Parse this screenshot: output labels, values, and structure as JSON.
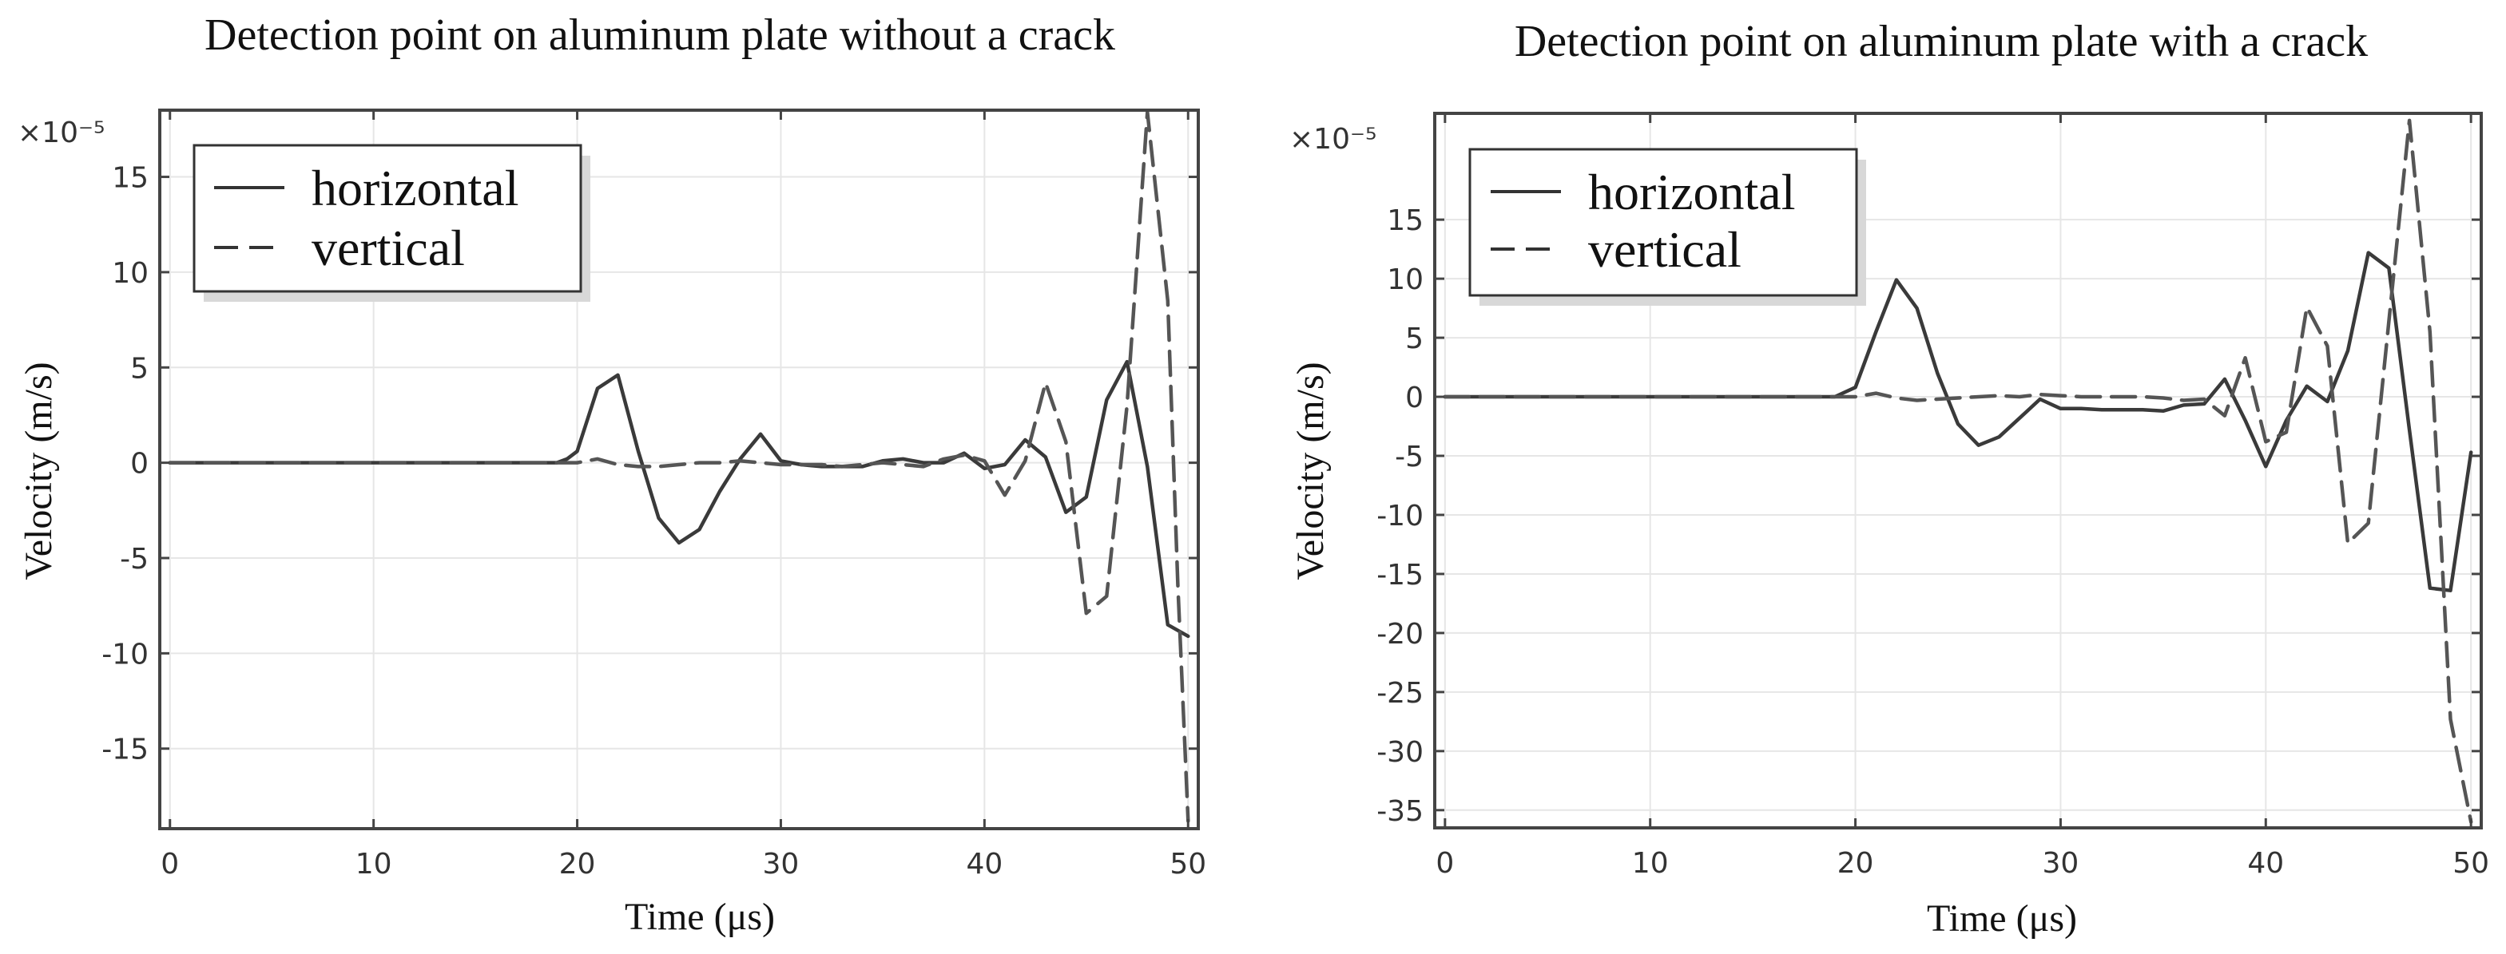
{
  "chart_data": [
    {
      "type": "line",
      "title": "Detection point on aluminum plate without a crack",
      "xlabel": "Time (μs)",
      "ylabel": "Velocity (m/s)",
      "y_scale_label": "×10⁻⁵",
      "xlim": [
        -0.5,
        50.5
      ],
      "ylim": [
        -19.2,
        18.5
      ],
      "xticks": [
        0,
        10,
        20,
        30,
        40,
        50
      ],
      "yticks": [
        -15,
        -10,
        -5,
        0,
        5,
        10,
        15
      ],
      "xtick_labels": [
        "0",
        "10",
        "20",
        "30",
        "40",
        "50"
      ],
      "ytick_labels": [
        "-15",
        "-10",
        "-5",
        "0",
        "5",
        "10",
        "15"
      ],
      "grid": true,
      "legend_position": "top-left",
      "series": [
        {
          "name": "horizontal",
          "style": "solid",
          "color": "#3a3a3a",
          "x": [
            0,
            19,
            19.5,
            20,
            21,
            22,
            23,
            24,
            25,
            26,
            27,
            28,
            29,
            30,
            31,
            32,
            33,
            34,
            35,
            36,
            37,
            38,
            39,
            40,
            41,
            42,
            43,
            44,
            45,
            46,
            47,
            48,
            49,
            50
          ],
          "y": [
            0,
            0,
            0.2,
            0.6,
            3.9,
            4.6,
            0.6,
            -2.9,
            -4.2,
            -3.5,
            -1.5,
            0.2,
            1.5,
            0.1,
            -0.1,
            -0.2,
            -0.2,
            -0.2,
            0.1,
            0.2,
            0,
            0,
            0.5,
            -0.3,
            -0.1,
            1.2,
            0.3,
            -2.6,
            -1.8,
            3.3,
            5.3,
            -0.2,
            -8.5,
            -9.1
          ]
        },
        {
          "name": "vertical",
          "style": "dashed",
          "color": "#555555",
          "x": [
            0,
            19,
            20,
            21,
            22,
            23,
            24,
            25,
            26,
            27,
            28,
            29,
            30,
            31,
            32,
            33,
            34,
            35,
            36,
            37,
            38,
            39,
            40,
            41,
            42,
            43,
            44,
            45,
            46,
            47,
            48,
            49,
            49.5,
            50
          ],
          "y": [
            0,
            0,
            0,
            0.2,
            -0.1,
            -0.2,
            -0.2,
            -0.1,
            0,
            0,
            0.1,
            0,
            -0.1,
            -0.1,
            -0.1,
            -0.2,
            -0.1,
            0,
            -0.1,
            -0.2,
            0.2,
            0.4,
            0.1,
            -1.7,
            0.1,
            4.2,
            1.1,
            -7.9,
            -7.0,
            3.0,
            18.4,
            8.5,
            -6.5,
            -18.8
          ]
        }
      ]
    },
    {
      "type": "line",
      "title": "Detection point on aluminum plate with a crack",
      "xlabel": "Time (μs)",
      "ylabel": "Velocity (m/s)",
      "y_scale_label": "×10⁻⁵",
      "xlim": [
        -0.5,
        50.5
      ],
      "ylim": [
        -36.5,
        24
      ],
      "xticks": [
        0,
        10,
        20,
        30,
        40,
        50
      ],
      "yticks": [
        -35,
        -30,
        -25,
        -20,
        -15,
        -10,
        -5,
        0,
        5,
        10,
        15
      ],
      "xtick_labels": [
        "0",
        "10",
        "20",
        "30",
        "40",
        "50"
      ],
      "ytick_labels": [
        "-35",
        "-30",
        "-25",
        "-20",
        "-15",
        "-10",
        "-5",
        "0",
        "5",
        "10",
        "15"
      ],
      "grid": true,
      "legend_position": "top-left",
      "series": [
        {
          "name": "horizontal",
          "style": "solid",
          "color": "#3a3a3a",
          "x": [
            0,
            19,
            20,
            21,
            22,
            23,
            24,
            25,
            26,
            27,
            28,
            29,
            30,
            31,
            32,
            33,
            34,
            35,
            36,
            37,
            38,
            39,
            40,
            41,
            42,
            43,
            44,
            45,
            46,
            47,
            48,
            49,
            50
          ],
          "y": [
            0,
            0,
            0.8,
            5.5,
            9.9,
            7.5,
            2.0,
            -2.3,
            -4.1,
            -3.4,
            -1.8,
            -0.2,
            -1.0,
            -1.0,
            -1.1,
            -1.1,
            -1.1,
            -1.2,
            -0.7,
            -0.6,
            1.5,
            -2.0,
            -5.9,
            -2.0,
            0.9,
            -0.4,
            3.9,
            12.2,
            10.9,
            -2.8,
            -16.2,
            -16.4,
            -4.7
          ]
        },
        {
          "name": "vertical",
          "style": "dashed",
          "color": "#555555",
          "x": [
            0,
            19,
            20,
            21,
            22,
            23,
            24,
            25,
            26,
            27,
            28,
            29,
            30,
            31,
            32,
            33,
            34,
            35,
            36,
            37,
            38,
            39,
            40,
            41,
            42,
            43,
            44,
            45,
            46,
            47,
            48,
            49,
            50
          ],
          "y": [
            0,
            0,
            0,
            0.3,
            -0.1,
            -0.3,
            -0.2,
            -0.1,
            0,
            0.1,
            0,
            0.2,
            0.1,
            0,
            0,
            0,
            0,
            -0.1,
            -0.3,
            -0.2,
            -1.6,
            3.3,
            -3.8,
            -3.0,
            7.6,
            4.3,
            -12.4,
            -10.7,
            6.4,
            23.4,
            5.5,
            -27.3,
            -36.0
          ]
        }
      ]
    }
  ]
}
